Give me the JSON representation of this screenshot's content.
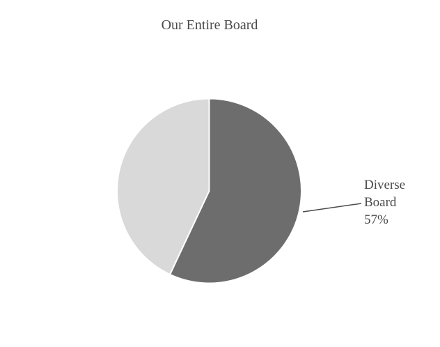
{
  "chart": {
    "title": "Our Entire Board",
    "data_label": {
      "lines": [
        "Diverse",
        "Board",
        "57%"
      ]
    }
  },
  "chart_data": {
    "type": "pie",
    "title": "Our Entire Board",
    "slices": [
      {
        "label": "Diverse Board",
        "value_pct": 57,
        "color": "#6d6d6d",
        "data_label": "Diverse Board 57%"
      },
      {
        "label": "",
        "value_pct": 43,
        "color": "#d9d9d9",
        "data_label": ""
      }
    ],
    "start_angle_deg": 0,
    "direction": "clockwise",
    "legend_position": "none",
    "background": "#ffffff"
  },
  "colors": {
    "slice_diverse": "#6d6d6d",
    "slice_other": "#d9d9d9",
    "slice_border": "#ffffff",
    "text": "#4a4a4a",
    "leader_line": "#4a4a4a",
    "background": "#ffffff"
  }
}
